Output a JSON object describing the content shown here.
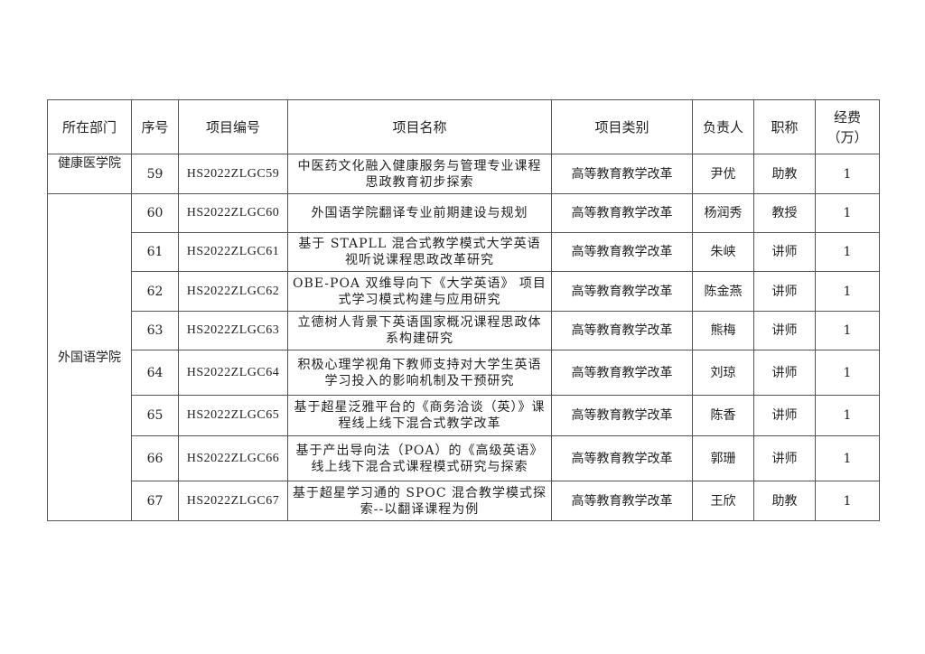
{
  "table": {
    "headers": [
      "所在部门",
      "序号",
      "项目编号",
      "项目名称",
      "项目类别",
      "负责人",
      "职称",
      "经费（万）"
    ],
    "header_fee_line1": "经费",
    "header_fee_line2": "（万）",
    "departments": [
      {
        "name": "健康医学院",
        "rows": [
          {
            "no": "59",
            "code": "HS2022ZLGC59",
            "title": "中医药文化融入健康服务与管理专业课程思政教育初步探索",
            "category": "高等教育教学改革",
            "leader": "尹优",
            "rank": "助教",
            "fee": "1"
          }
        ]
      },
      {
        "name": "外国语学院",
        "rows": [
          {
            "no": "60",
            "code": "HS2022ZLGC60",
            "title": "外国语学院翻译专业前期建设与规划",
            "category": "高等教育教学改革",
            "leader": "杨润秀",
            "rank": "教授",
            "fee": "1"
          },
          {
            "no": "61",
            "code": "HS2022ZLGC61",
            "title": "基于 STAPLL 混合式教学模式大学英语视听说课程思政改革研究",
            "category": "高等教育教学改革",
            "leader": "朱峡",
            "rank": "讲师",
            "fee": "1"
          },
          {
            "no": "62",
            "code": "HS2022ZLGC62",
            "title": "OBE-POA 双维导向下《大学英语》 项目式学习模式构建与应用研究",
            "category": "高等教育教学改革",
            "leader": "陈金燕",
            "rank": "讲师",
            "fee": "1"
          },
          {
            "no": "63",
            "code": "HS2022ZLGC63",
            "title": "立德树人背景下英语国家概况课程思政体系构建研究",
            "category": "高等教育教学改革",
            "leader": "熊梅",
            "rank": "讲师",
            "fee": "1"
          },
          {
            "no": "64",
            "code": "HS2022ZLGC64",
            "title": "积极心理学视角下教师支持对大学生英语学习投入的影响机制及干预研究",
            "category": "高等教育教学改革",
            "leader": "刘琼",
            "rank": "讲师",
            "fee": "1"
          },
          {
            "no": "65",
            "code": "HS2022ZLGC65",
            "title": "基于超星泛雅平台的《商务洽谈（英）》课程线上线下混合式教学改革",
            "category": "高等教育教学改革",
            "leader": "陈香",
            "rank": "讲师",
            "fee": "1"
          },
          {
            "no": "66",
            "code": "HS2022ZLGC66",
            "title": "基于产出导向法（POA）的《高级英语》线上线下混合式课程模式研究与探索",
            "category": "高等教育教学改革",
            "leader": "郭珊",
            "rank": "讲师",
            "fee": "1"
          },
          {
            "no": "67",
            "code": "HS2022ZLGC67",
            "title": "基于超星学习通的 SPOC 混合教学模式探索--以翻译课程为例",
            "category": "高等教育教学改革",
            "leader": "王欣",
            "rank": "助教",
            "fee": "1"
          }
        ]
      }
    ]
  }
}
